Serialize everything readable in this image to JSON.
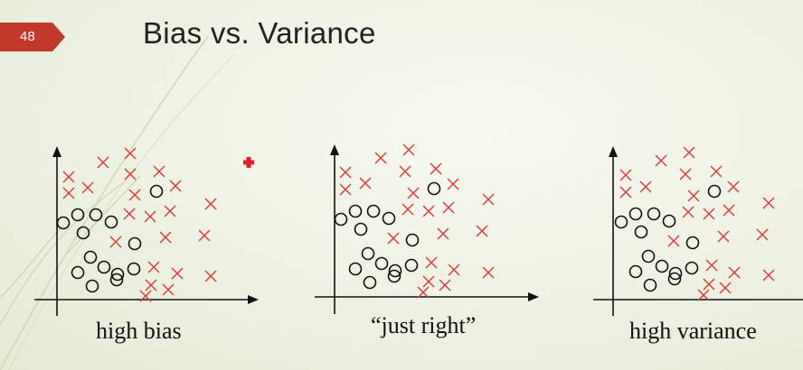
{
  "slide": {
    "number": "48",
    "title": "Bias vs. Variance",
    "accent_color": "#c0392b",
    "cross_color": "#e03c3c",
    "circle_color": "#111111"
  },
  "panels": [
    {
      "label": "high bias"
    },
    {
      "label": "“just right”"
    },
    {
      "label": "high variance"
    }
  ],
  "icons": {
    "add": "plus-icon"
  }
}
